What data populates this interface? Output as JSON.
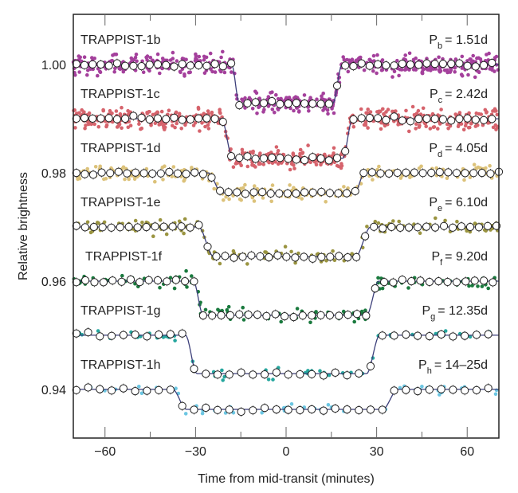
{
  "chart_data": {
    "type": "scatter",
    "title": "",
    "xlabel": "Time from mid-transit (minutes)",
    "ylabel": "Relative brightness",
    "xlim": [
      -70.5,
      70.5
    ],
    "ylim": [
      0.931,
      1.0093
    ],
    "xticks": [
      -60,
      -30,
      0,
      30,
      60
    ],
    "xtick_labels": [
      "−60",
      "−30",
      "0",
      "30",
      "60"
    ],
    "xminor_ticks": [
      -45,
      -15,
      15,
      45
    ],
    "yticks": [
      1.0,
      0.98,
      0.96,
      0.94
    ],
    "ytick_labels": [
      "1.00",
      "0.98",
      "0.96",
      "0.94"
    ],
    "grid": false,
    "legend": "none",
    "model_line_color": "#3c3f7a",
    "binned_marker": "open-circle",
    "series": [
      {
        "name": "TRAPPIST-1b",
        "period_symbol": "P",
        "period_sub": "b",
        "period_value": "= 1.51d",
        "color": "#a4409c",
        "baseline": 1.0,
        "bottom": 0.9928,
        "ingress": [
          -18,
          -15.5
        ],
        "egress": [
          15.5,
          18.5
        ],
        "scatter": 0.0015
      },
      {
        "name": "TRAPPIST-1c",
        "period_symbol": "P",
        "period_sub": "c",
        "period_value": "= 2.42d",
        "color": "#d6636c",
        "baseline": 0.99,
        "bottom": 0.9827,
        "ingress": [
          -21.4,
          -17.7
        ],
        "egress": [
          18.8,
          22
        ],
        "scatter": 0.0015
      },
      {
        "name": "TRAPPIST-1d",
        "period_symbol": "P",
        "period_sub": "d",
        "period_value": "= 4.05d",
        "color": "#dcc27a",
        "baseline": 0.98,
        "bottom": 0.9763,
        "ingress": [
          -25.7,
          -21.4
        ],
        "egress": [
          22.7,
          26
        ],
        "scatter": 0.0012
      },
      {
        "name": "TRAPPIST-1e",
        "period_symbol": "P",
        "period_sub": "e",
        "period_value": "= 6.10d",
        "color": "#9a9440",
        "baseline": 0.97,
        "bottom": 0.9645,
        "ingress": [
          -29,
          -24
        ],
        "egress": [
          23,
          28
        ],
        "scatter": 0.0011
      },
      {
        "name": "TRAPPIST-1f",
        "period_symbol": "P",
        "period_sub": "f",
        "period_value": "= 9.20d",
        "color": "#1a7a3e",
        "baseline": 0.96,
        "bottom": 0.9537,
        "ingress": [
          -30.7,
          -27.5
        ],
        "egress": [
          26.7,
          30.7
        ],
        "scatter": 0.0011
      },
      {
        "name": "TRAPPIST-1g",
        "period_symbol": "P",
        "period_sub": "g",
        "period_value": "= 12.35d",
        "color": "#25a69e",
        "baseline": 0.95,
        "bottom": 0.9429,
        "ingress": [
          -33.3,
          -29.6
        ],
        "egress": [
          26.7,
          31
        ],
        "scatter": 0.0008
      },
      {
        "name": "TRAPPIST-1h",
        "period_symbol": "P",
        "period_sub": "h",
        "period_value": "= 14–25d",
        "color": "#6cc6e2",
        "baseline": 0.94,
        "bottom": 0.9363,
        "ingress": [
          -37.6,
          -33
        ],
        "egress": [
          32,
          37
        ],
        "scatter": 0.0008
      }
    ]
  }
}
